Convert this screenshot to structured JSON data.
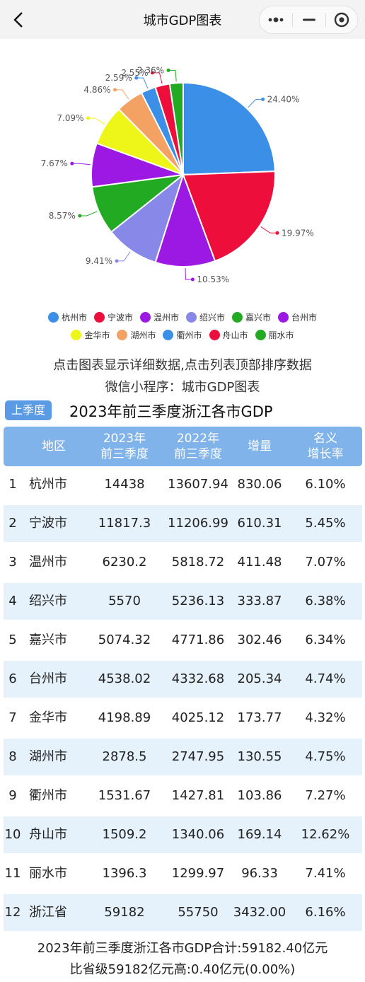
{
  "header": {
    "title": "城市GDP图表"
  },
  "chart_data": {
    "type": "pie",
    "slices": [
      {
        "name": "杭州市",
        "value": 24.4,
        "label": "24.40%",
        "color": "#3b8fe6"
      },
      {
        "name": "宁波市",
        "value": 19.97,
        "label": "19.97%",
        "color": "#ee0e3c"
      },
      {
        "name": "温州市",
        "value": 10.53,
        "label": "10.53%",
        "color": "#9b19e2"
      },
      {
        "name": "绍兴市",
        "value": 9.41,
        "label": "9.41%",
        "color": "#8888e8"
      },
      {
        "name": "嘉兴市",
        "value": 8.57,
        "label": "8.57%",
        "color": "#22aa22"
      },
      {
        "name": "台州市",
        "value": 7.67,
        "label": "7.67%",
        "color": "#9b19e2"
      },
      {
        "name": "金华市",
        "value": 7.09,
        "label": "7.09%",
        "color": "#eef518"
      },
      {
        "name": "湖州市",
        "value": 4.86,
        "label": "4.86%",
        "color": "#f4a264"
      },
      {
        "name": "衢州市",
        "value": 2.59,
        "label": "2.59%",
        "color": "#3b8fe6"
      },
      {
        "name": "舟山市",
        "value": 2.55,
        "label": "2.55%",
        "color": "#ee0e3c"
      },
      {
        "name": "丽水市",
        "value": 2.36,
        "label": "2.36%",
        "color": "#22aa22"
      }
    ],
    "legend_position": "bottom"
  },
  "legend": [
    [
      "杭州市",
      "宁波市",
      "温州市",
      "绍兴市",
      "嘉兴市",
      "台州市"
    ],
    [
      "金华市",
      "湖州市",
      "衢州市",
      "舟山市",
      "丽水市"
    ]
  ],
  "hints": {
    "line1": "点击图表显示详细数据,点击列表顶部排序数据",
    "line2": "微信小程序：城市GDP图表"
  },
  "season_button": "上季度",
  "table": {
    "title": "2023年前三季度浙江各市GDP",
    "headers": {
      "region": "地区",
      "v2023_a": "2023年",
      "v2023_b": "前三季度",
      "sort_arrow": "↓",
      "v2022_a": "2022年",
      "v2022_b": "前三季度",
      "increase": "增量",
      "rate_a": "名义",
      "rate_b": "增长率"
    },
    "rows": [
      [
        "1",
        "杭州市",
        "14438",
        "13607.94",
        "830.06",
        "6.10%"
      ],
      [
        "2",
        "宁波市",
        "11817.3",
        "11206.99",
        "610.31",
        "5.45%"
      ],
      [
        "3",
        "温州市",
        "6230.2",
        "5818.72",
        "411.48",
        "7.07%"
      ],
      [
        "4",
        "绍兴市",
        "5570",
        "5236.13",
        "333.87",
        "6.38%"
      ],
      [
        "5",
        "嘉兴市",
        "5074.32",
        "4771.86",
        "302.46",
        "6.34%"
      ],
      [
        "6",
        "台州市",
        "4538.02",
        "4332.68",
        "205.34",
        "4.74%"
      ],
      [
        "7",
        "金华市",
        "4198.89",
        "4025.12",
        "173.77",
        "4.32%"
      ],
      [
        "8",
        "湖州市",
        "2878.5",
        "2747.95",
        "130.55",
        "4.75%"
      ],
      [
        "9",
        "衢州市",
        "1531.67",
        "1427.81",
        "103.86",
        "7.27%"
      ],
      [
        "10",
        "舟山市",
        "1509.2",
        "1340.06",
        "169.14",
        "12.62%"
      ],
      [
        "11",
        "丽水市",
        "1396.3",
        "1299.97",
        "96.33",
        "7.41%"
      ],
      [
        "12",
        "浙江省",
        "59182",
        "55750",
        "3432.00",
        "6.16%"
      ]
    ]
  },
  "summary": {
    "line1": "2023年前三季度浙江各市GDP合计:59182.40亿元",
    "line2": "比省级59182亿元高:0.40亿元(0.00%)"
  }
}
